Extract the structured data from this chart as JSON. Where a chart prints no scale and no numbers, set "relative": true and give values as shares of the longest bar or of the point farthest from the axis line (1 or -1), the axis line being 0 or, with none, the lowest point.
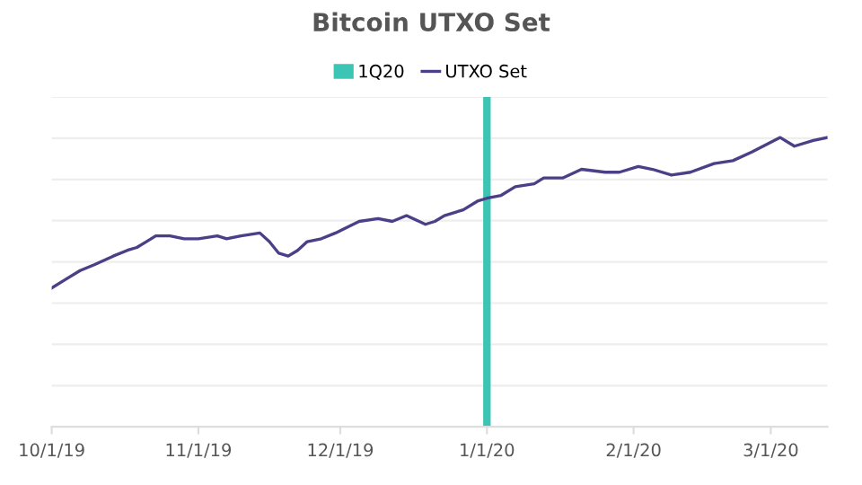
{
  "chart_data": {
    "type": "line",
    "title": "Bitcoin UTXO Set",
    "relative": true,
    "legend": "top",
    "grid": "y",
    "marker": "none",
    "line_style": "solid",
    "x": [
      "2019-10-01",
      "2019-10-04",
      "2019-10-07",
      "2019-10-10",
      "2019-10-14",
      "2019-10-17",
      "2019-10-19",
      "2019-10-21",
      "2019-10-23",
      "2019-10-26",
      "2019-10-29",
      "2019-11-01",
      "2019-11-05",
      "2019-11-07",
      "2019-11-10",
      "2019-11-14",
      "2019-11-16",
      "2019-11-18",
      "2019-11-20",
      "2019-11-22",
      "2019-11-24",
      "2019-11-27",
      "2019-11-30",
      "2019-12-05",
      "2019-12-09",
      "2019-12-12",
      "2019-12-15",
      "2019-12-19",
      "2019-12-21",
      "2019-12-23",
      "2019-12-27",
      "2019-12-30",
      "2020-01-01",
      "2020-01-04",
      "2020-01-07",
      "2020-01-11",
      "2020-01-13",
      "2020-01-17",
      "2020-01-21",
      "2020-01-26",
      "2020-01-29",
      "2020-02-02",
      "2020-02-05",
      "2020-02-09",
      "2020-02-13",
      "2020-02-18",
      "2020-02-22",
      "2020-02-26",
      "2020-03-03",
      "2020-03-06",
      "2020-03-10",
      "2020-03-13"
    ],
    "series": [
      {
        "name": "UTXO Set",
        "color": "#4b3f87",
        "values": [
          0.48,
          0.51,
          0.54,
          0.56,
          0.59,
          0.61,
          0.62,
          0.64,
          0.66,
          0.66,
          0.65,
          0.65,
          0.66,
          0.65,
          0.66,
          0.67,
          0.64,
          0.6,
          0.59,
          0.61,
          0.64,
          0.65,
          0.67,
          0.71,
          0.72,
          0.71,
          0.73,
          0.7,
          0.71,
          0.73,
          0.75,
          0.78,
          0.79,
          0.8,
          0.83,
          0.84,
          0.86,
          0.86,
          0.89,
          0.88,
          0.88,
          0.9,
          0.89,
          0.87,
          0.88,
          0.91,
          0.92,
          0.95,
          1.0,
          0.97,
          0.99,
          1.0
        ]
      }
    ],
    "ref_lines": [
      {
        "axis": "x",
        "value": "2020-01-01",
        "label": "1Q20",
        "color": "#3cc5b5"
      }
    ],
    "xlim": [
      "2019-10-01",
      "2020-03-13"
    ],
    "xticks": [
      {
        "value": "2019-10-01",
        "label": "10/1/19"
      },
      {
        "value": "2019-11-01",
        "label": "11/1/19"
      },
      {
        "value": "2019-12-01",
        "label": "12/1/19"
      },
      {
        "value": "2020-01-01",
        "label": "1/1/20"
      },
      {
        "value": "2020-02-01",
        "label": "2/1/20"
      },
      {
        "value": "2020-03-01",
        "label": "3/1/20"
      }
    ]
  }
}
